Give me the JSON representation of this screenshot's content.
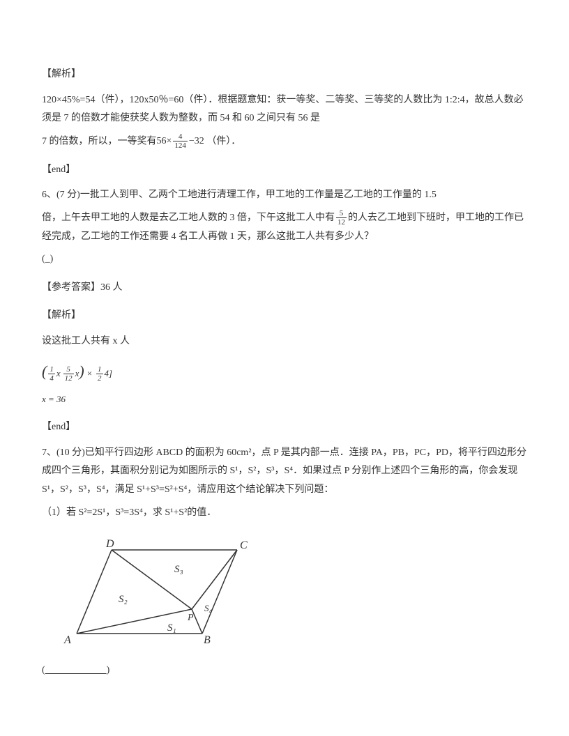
{
  "sec1_label": "【解析】",
  "sec1_p1_a": "120×45%=54（件），120x50％=60（件）．根据题意知：获一等奖、二等奖、三等奖的人数比为 1:2:4，故总人数必须是 7 的倍数才能使获奖人数为整数，而 54 和 60 之间只有 56 是",
  "sec1_p2_a": "7 的倍数，所以，一等奖有",
  "frac1_left": "56×",
  "frac1_num": "4",
  "frac1_den": "124",
  "frac1_right": "−32",
  "sec1_p2_b": "（件）．",
  "end1": "【end】",
  "q6_a": "6、(7 分)一批工人到甲、乙两个工地进行清理工作，甲工地的工作量是乙工地的工作量的 1.5",
  "q6_b_pre": "倍，上午去甲工地的人数是去乙工地人数的 3 倍，下午这批工人中有",
  "frac2_num": "5",
  "frac2_den": "12",
  "q6_b_post": "的人去乙工地到下班时，甲工地的工作已经完成，乙工地的工作还需要 4 名工人再做 1 天，那么这批工人共有多少人？",
  "q6_blank": "(_)",
  "q6_ans_label": "【参考答案】36 人",
  "sec2_label": "【解析】",
  "sec2_p1": "设这批工人共有 x 人",
  "eq1_open": "(",
  "eq1_f1": "(1/4)x",
  "eq1_f2": "(5/12)x",
  "eq1_close": ") ×",
  "eq1_f3_num": "1",
  "eq1_f3_den": "2",
  "eq1_tail": "4]",
  "eq2": "x = 36",
  "end2": "【end】",
  "q7_a": "7、(10 分)已知平行四边形 ABCD 的面积为 60cm²，点 P 是其内部一点．连接 PA，PB，PC，PD，将平行四边形分成四个三角形，其面积分别记为如图所示的 S¹，S²，S³，S⁴．如果过点 P 分别作上述四个三角形的高，你会发现 S¹，S²，S³，S⁴，满足 S¹+S³=S²+S⁴，请应用这个结论解决下列问题：",
  "q7_sub1": "（1）若 S²=2S¹，S³=3S⁴，求 S¹+S²的值．",
  "q7_blank": "(____________)",
  "diagram": {
    "labels": {
      "A": "A",
      "B": "B",
      "C": "C",
      "D": "D",
      "P": "P",
      "S1": "S₁",
      "S2": "S₂",
      "S3": "S₃",
      "S4": "S₄"
    },
    "stroke": "#333333",
    "fill": "#ffffff",
    "font": "italic 16px Times New Roman"
  }
}
